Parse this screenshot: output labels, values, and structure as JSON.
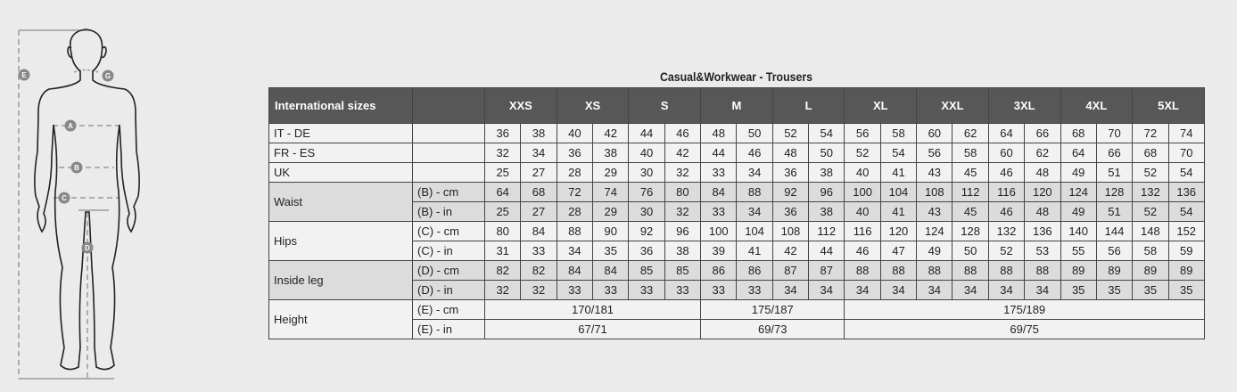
{
  "figure": {
    "markers": [
      "E",
      "G",
      "A",
      "B",
      "C",
      "D"
    ]
  },
  "table": {
    "title": "Casual&Workwear - Trousers",
    "header": {
      "label": "International sizes",
      "unit": "",
      "sizes": [
        "XXS",
        "XS",
        "S",
        "M",
        "L",
        "XL",
        "XXL",
        "3XL",
        "4XL",
        "5XL"
      ]
    },
    "rows": [
      {
        "label": "IT - DE",
        "shaded": false,
        "units": [
          {
            "unit": "",
            "values": [
              "36",
              "38",
              "40",
              "42",
              "44",
              "46",
              "48",
              "50",
              "52",
              "54",
              "56",
              "58",
              "60",
              "62",
              "64",
              "66",
              "68",
              "70",
              "72",
              "74"
            ]
          }
        ]
      },
      {
        "label": "FR - ES",
        "shaded": false,
        "units": [
          {
            "unit": "",
            "values": [
              "32",
              "34",
              "36",
              "38",
              "40",
              "42",
              "44",
              "46",
              "48",
              "50",
              "52",
              "54",
              "56",
              "58",
              "60",
              "62",
              "64",
              "66",
              "68",
              "70"
            ]
          }
        ]
      },
      {
        "label": "UK",
        "shaded": false,
        "units": [
          {
            "unit": "",
            "values": [
              "25",
              "27",
              "28",
              "29",
              "30",
              "32",
              "33",
              "34",
              "36",
              "38",
              "40",
              "41",
              "43",
              "45",
              "46",
              "48",
              "49",
              "51",
              "52",
              "54"
            ]
          }
        ]
      },
      {
        "label": "Waist",
        "shaded": true,
        "units": [
          {
            "unit": "(B) - cm",
            "values": [
              "64",
              "68",
              "72",
              "74",
              "76",
              "80",
              "84",
              "88",
              "92",
              "96",
              "100",
              "104",
              "108",
              "112",
              "116",
              "120",
              "124",
              "128",
              "132",
              "136"
            ]
          },
          {
            "unit": "(B) - in",
            "values": [
              "25",
              "27",
              "28",
              "29",
              "30",
              "32",
              "33",
              "34",
              "36",
              "38",
              "40",
              "41",
              "43",
              "45",
              "46",
              "48",
              "49",
              "51",
              "52",
              "54"
            ]
          }
        ]
      },
      {
        "label": "Hips",
        "shaded": false,
        "units": [
          {
            "unit": "(C) - cm",
            "values": [
              "80",
              "84",
              "88",
              "90",
              "92",
              "96",
              "100",
              "104",
              "108",
              "112",
              "116",
              "120",
              "124",
              "128",
              "132",
              "136",
              "140",
              "144",
              "148",
              "152"
            ]
          },
          {
            "unit": "(C) - in",
            "values": [
              "31",
              "33",
              "34",
              "35",
              "36",
              "38",
              "39",
              "41",
              "42",
              "44",
              "46",
              "47",
              "49",
              "50",
              "52",
              "53",
              "55",
              "56",
              "58",
              "59"
            ]
          }
        ]
      },
      {
        "label": "Inside leg",
        "shaded": true,
        "units": [
          {
            "unit": "(D) - cm",
            "values": [
              "82",
              "82",
              "84",
              "84",
              "85",
              "85",
              "86",
              "86",
              "87",
              "87",
              "88",
              "88",
              "88",
              "88",
              "88",
              "88",
              "89",
              "89",
              "89",
              "89"
            ]
          },
          {
            "unit": "(D) - in",
            "values": [
              "32",
              "32",
              "33",
              "33",
              "33",
              "33",
              "33",
              "33",
              "34",
              "34",
              "34",
              "34",
              "34",
              "34",
              "34",
              "34",
              "35",
              "35",
              "35",
              "35"
            ]
          }
        ]
      },
      {
        "label": "Height",
        "shaded": false,
        "units": [
          {
            "unit": "(E) - cm",
            "values": [
              "170/181",
              "175/187",
              "175/189"
            ]
          },
          {
            "unit": "(E) - in",
            "values": [
              "67/71",
              "69/73",
              "69/75"
            ]
          }
        ]
      }
    ]
  }
}
